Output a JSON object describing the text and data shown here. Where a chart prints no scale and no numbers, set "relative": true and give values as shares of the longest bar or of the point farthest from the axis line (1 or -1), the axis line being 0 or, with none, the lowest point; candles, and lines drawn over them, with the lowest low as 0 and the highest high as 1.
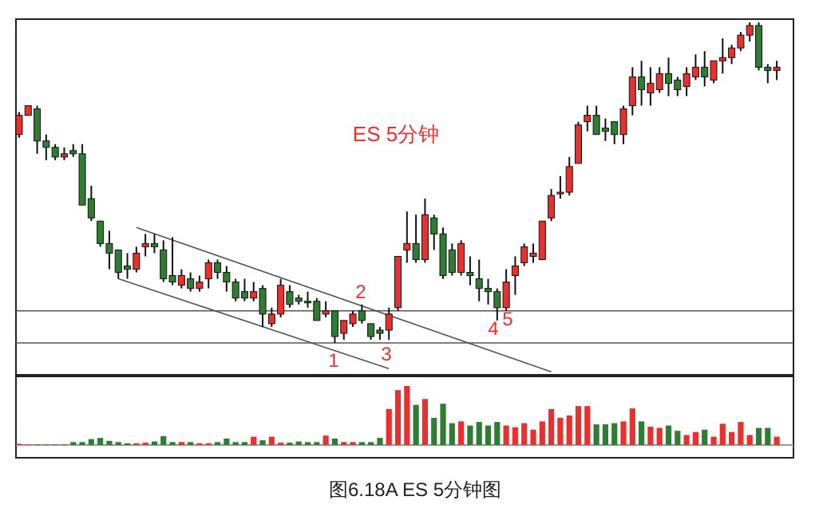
{
  "chart_data": [
    {
      "type": "candlestick",
      "relative": true,
      "categories": [
        null,
        null,
        null,
        null,
        null,
        null,
        null,
        null,
        null,
        null,
        null,
        null,
        null,
        null,
        null,
        null,
        null,
        null,
        null,
        null,
        null,
        null,
        null,
        null,
        null,
        null,
        null,
        null,
        null,
        null,
        null,
        null,
        null,
        null,
        null,
        null,
        null,
        null,
        null,
        null,
        null,
        null,
        null,
        null,
        null,
        null,
        null,
        null,
        null,
        null,
        null,
        null,
        null,
        null,
        null,
        null,
        null,
        null,
        null,
        null,
        null,
        null,
        null,
        null,
        null,
        null,
        null,
        null,
        null,
        null,
        null,
        null,
        null,
        null,
        null,
        null,
        null,
        null,
        null,
        null,
        null,
        null,
        null,
        null,
        null
      ],
      "ohlc": [
        [
          0.65,
          0.72,
          0.64,
          0.71
        ],
        [
          0.71,
          0.74,
          0.71,
          0.74
        ],
        [
          0.73,
          0.74,
          0.59,
          0.63
        ],
        [
          0.63,
          0.65,
          0.57,
          0.61
        ],
        [
          0.61,
          0.62,
          0.57,
          0.58
        ],
        [
          0.58,
          0.61,
          0.57,
          0.59
        ],
        [
          0.6,
          0.62,
          0.58,
          0.59
        ],
        [
          0.59,
          0.62,
          0.43,
          0.43
        ],
        [
          0.45,
          0.49,
          0.38,
          0.39
        ],
        [
          0.38,
          0.38,
          0.3,
          0.31
        ],
        [
          0.31,
          0.35,
          0.23,
          0.28
        ],
        [
          0.29,
          0.29,
          0.2,
          0.22
        ],
        [
          0.24,
          0.28,
          0.2,
          0.23
        ],
        [
          0.23,
          0.3,
          0.22,
          0.28
        ],
        [
          0.3,
          0.34,
          0.27,
          0.31
        ],
        [
          0.31,
          0.34,
          0.28,
          0.3
        ],
        [
          0.29,
          0.32,
          0.19,
          0.2
        ],
        [
          0.21,
          0.33,
          0.18,
          0.19
        ],
        [
          0.18,
          0.23,
          0.17,
          0.21
        ],
        [
          0.2,
          0.22,
          0.16,
          0.17
        ],
        [
          0.17,
          0.21,
          0.16,
          0.19
        ],
        [
          0.2,
          0.26,
          0.17,
          0.25
        ],
        [
          0.25,
          0.26,
          0.2,
          0.22
        ],
        [
          0.22,
          0.24,
          0.16,
          0.19
        ],
        [
          0.19,
          0.2,
          0.13,
          0.14
        ],
        [
          0.16,
          0.2,
          0.13,
          0.14
        ],
        [
          0.14,
          0.19,
          0.13,
          0.16
        ],
        [
          0.17,
          0.18,
          0.05,
          0.09
        ],
        [
          0.06,
          0.11,
          0.05,
          0.09
        ],
        [
          0.09,
          0.2,
          0.08,
          0.18
        ],
        [
          0.16,
          0.18,
          0.11,
          0.12
        ],
        [
          0.14,
          0.15,
          0.12,
          0.13
        ],
        [
          0.13,
          0.16,
          0.11,
          0.13
        ],
        [
          0.13,
          0.14,
          0.07,
          0.07
        ],
        [
          0.09,
          0.13,
          0.08,
          0.1
        ],
        [
          0.1,
          0.1,
          0.0,
          0.02
        ],
        [
          0.03,
          0.07,
          0.01,
          0.07
        ],
        [
          0.06,
          0.1,
          0.05,
          0.09
        ],
        [
          0.1,
          0.12,
          0.06,
          0.07
        ],
        [
          0.06,
          0.06,
          0.01,
          0.02
        ],
        [
          0.04,
          0.05,
          0.01,
          0.03
        ],
        [
          0.04,
          0.11,
          0.01,
          0.09
        ],
        [
          0.11,
          0.27,
          0.1,
          0.27
        ],
        [
          0.29,
          0.41,
          0.25,
          0.31
        ],
        [
          0.31,
          0.4,
          0.25,
          0.26
        ],
        [
          0.26,
          0.45,
          0.25,
          0.4
        ],
        [
          0.39,
          0.4,
          0.29,
          0.34
        ],
        [
          0.34,
          0.36,
          0.2,
          0.21
        ],
        [
          0.29,
          0.31,
          0.21,
          0.22
        ],
        [
          0.22,
          0.32,
          0.21,
          0.31
        ],
        [
          0.22,
          0.27,
          0.18,
          0.21
        ],
        [
          0.2,
          0.26,
          0.13,
          0.17
        ],
        [
          0.17,
          0.2,
          0.12,
          0.16
        ],
        [
          0.16,
          0.17,
          0.07,
          0.11
        ],
        [
          0.11,
          0.23,
          0.1,
          0.19
        ],
        [
          0.21,
          0.27,
          0.15,
          0.24
        ],
        [
          0.25,
          0.31,
          0.24,
          0.3
        ],
        [
          0.27,
          0.31,
          0.25,
          0.28
        ],
        [
          0.26,
          0.38,
          0.26,
          0.38
        ],
        [
          0.39,
          0.48,
          0.38,
          0.46
        ],
        [
          0.47,
          0.52,
          0.45,
          0.47
        ],
        [
          0.47,
          0.58,
          0.46,
          0.55
        ],
        [
          0.56,
          0.69,
          0.56,
          0.68
        ],
        [
          0.69,
          0.74,
          0.66,
          0.71
        ],
        [
          0.71,
          0.74,
          0.65,
          0.65
        ],
        [
          0.67,
          0.7,
          0.63,
          0.66
        ],
        [
          0.69,
          0.69,
          0.62,
          0.65
        ],
        [
          0.65,
          0.74,
          0.62,
          0.73
        ],
        [
          0.74,
          0.86,
          0.71,
          0.83
        ],
        [
          0.83,
          0.88,
          0.74,
          0.79
        ],
        [
          0.78,
          0.86,
          0.74,
          0.81
        ],
        [
          0.79,
          0.86,
          0.78,
          0.84
        ],
        [
          0.84,
          0.89,
          0.77,
          0.81
        ],
        [
          0.82,
          0.83,
          0.77,
          0.79
        ],
        [
          0.8,
          0.86,
          0.77,
          0.84
        ],
        [
          0.83,
          0.9,
          0.82,
          0.86
        ],
        [
          0.86,
          0.91,
          0.8,
          0.83
        ],
        [
          0.82,
          0.88,
          0.81,
          0.88
        ],
        [
          0.88,
          0.95,
          0.84,
          0.89
        ],
        [
          0.89,
          0.93,
          0.87,
          0.92
        ],
        [
          0.92,
          0.97,
          0.91,
          0.96
        ],
        [
          0.96,
          1.0,
          0.94,
          0.99
        ],
        [
          0.99,
          1.0,
          0.85,
          0.86
        ],
        [
          0.86,
          0.87,
          0.81,
          0.85
        ],
        [
          0.85,
          0.88,
          0.82,
          0.86
        ]
      ],
      "colors": [
        "#e8312f",
        "#e8312f",
        "#2e7d32",
        "#2e7d32",
        "#2e7d32",
        "#e8312f",
        "#2e7d32",
        "#2e7d32",
        "#2e7d32",
        "#2e7d32",
        "#2e7d32",
        "#2e7d32",
        "#2e7d32",
        "#e8312f",
        "#e8312f",
        "#2e7d32",
        "#2e7d32",
        "#2e7d32",
        "#e8312f",
        "#2e7d32",
        "#e8312f",
        "#e8312f",
        "#2e7d32",
        "#2e7d32",
        "#2e7d32",
        "#2e7d32",
        "#e8312f",
        "#2e7d32",
        "#e8312f",
        "#e8312f",
        "#2e7d32",
        "#2e7d32",
        "#2e7d32",
        "#2e7d32",
        "#e8312f",
        "#2e7d32",
        "#e8312f",
        "#e8312f",
        "#2e7d32",
        "#2e7d32",
        "#2e7d32",
        "#e8312f",
        "#e8312f",
        "#e8312f",
        "#2e7d32",
        "#e8312f",
        "#2e7d32",
        "#2e7d32",
        "#2e7d32",
        "#e8312f",
        "#2e7d32",
        "#2e7d32",
        "#2e7d32",
        "#2e7d32",
        "#e8312f",
        "#e8312f",
        "#e8312f",
        "#e8312f",
        "#e8312f",
        "#e8312f",
        "#e8312f",
        "#e8312f",
        "#e8312f",
        "#e8312f",
        "#2e7d32",
        "#2e7d32",
        "#2e7d32",
        "#e8312f",
        "#e8312f",
        "#2e7d32",
        "#e8312f",
        "#e8312f",
        "#2e7d32",
        "#2e7d32",
        "#e8312f",
        "#e8312f",
        "#2e7d32",
        "#e8312f",
        "#e8312f",
        "#e8312f",
        "#e8312f",
        "#e8312f",
        "#2e7d32",
        "#2e7d32",
        "#e8312f"
      ],
      "series": [
        {
          "type": "line",
          "color": "#555555",
          "values": [
            null,
            null,
            null,
            null,
            null,
            null,
            null,
            null,
            null,
            null,
            null,
            null,
            null,
            0.36,
            null,
            null,
            null,
            null,
            null,
            null,
            null,
            null,
            null,
            null,
            null,
            null,
            null,
            null,
            null,
            null,
            null,
            null,
            null,
            null,
            null,
            null,
            null,
            null,
            null,
            null,
            null,
            null,
            null,
            null,
            null,
            null,
            null,
            null,
            null,
            null,
            null,
            null,
            null,
            null,
            null,
            null,
            null,
            null,
            null,
            -0.09,
            null,
            null,
            null,
            null,
            null,
            null,
            null,
            null,
            null,
            null,
            null,
            null,
            null,
            null,
            null,
            null,
            null,
            null,
            null,
            null,
            null,
            null,
            null,
            null,
            null
          ]
        },
        {
          "type": "line",
          "color": "#555555",
          "values": [
            null,
            null,
            null,
            null,
            null,
            null,
            null,
            null,
            null,
            null,
            null,
            0.2,
            null,
            null,
            null,
            null,
            null,
            null,
            null,
            null,
            null,
            null,
            null,
            null,
            null,
            null,
            null,
            null,
            null,
            null,
            null,
            null,
            null,
            null,
            null,
            null,
            null,
            null,
            null,
            null,
            null,
            -0.08,
            null,
            null,
            null,
            null,
            null,
            null,
            null,
            null,
            null,
            null,
            null,
            null,
            null,
            null,
            null,
            null,
            null,
            null,
            null,
            null,
            null,
            null,
            null,
            null,
            null,
            null,
            null,
            null,
            null,
            null,
            null,
            null,
            null,
            null,
            null,
            null,
            null,
            null,
            null,
            null,
            null,
            null,
            null
          ]
        }
      ],
      "ref_lines": [
        {
          "axis": "y",
          "value": 0.1,
          "color": "#555555"
        },
        {
          "axis": "y",
          "value": 0.0,
          "color": "#555555"
        }
      ],
      "annotations": [
        "ES 5分钟",
        "1",
        "2",
        "3",
        "4",
        "5"
      ]
    },
    {
      "type": "bar",
      "relative": true,
      "categories": [
        null,
        null,
        null,
        null,
        null,
        null,
        null,
        null,
        null,
        null,
        null,
        null,
        null,
        null,
        null,
        null,
        null,
        null,
        null,
        null,
        null,
        null,
        null,
        null,
        null,
        null,
        null,
        null,
        null,
        null,
        null,
        null,
        null,
        null,
        null,
        null,
        null,
        null,
        null,
        null,
        null,
        null,
        null,
        null,
        null,
        null,
        null,
        null,
        null,
        null,
        null,
        null,
        null,
        null,
        null,
        null,
        null,
        null,
        null,
        null,
        null,
        null,
        null,
        null,
        null,
        null,
        null,
        null,
        null,
        null,
        null,
        null,
        null,
        null,
        null,
        null,
        null,
        null,
        null,
        null,
        null,
        null,
        null,
        null,
        null
      ],
      "values": [
        0.02,
        0.01,
        0.01,
        0.01,
        0.01,
        0.01,
        0.05,
        0.05,
        0.1,
        0.12,
        0.07,
        0.05,
        0.03,
        0.03,
        0.04,
        0.06,
        0.15,
        0.05,
        0.05,
        0.05,
        0.03,
        0.03,
        0.05,
        0.11,
        0.05,
        0.05,
        0.14,
        0.08,
        0.14,
        0.04,
        0.04,
        0.06,
        0.05,
        0.05,
        0.16,
        0.11,
        0.05,
        0.05,
        0.05,
        0.05,
        0.12,
        0.61,
        0.93,
        1.0,
        0.68,
        0.78,
        0.46,
        0.7,
        0.37,
        0.4,
        0.33,
        0.39,
        0.33,
        0.39,
        0.33,
        0.3,
        0.37,
        0.26,
        0.4,
        0.61,
        0.46,
        0.5,
        0.66,
        0.66,
        0.35,
        0.35,
        0.37,
        0.4,
        0.62,
        0.4,
        0.31,
        0.29,
        0.33,
        0.24,
        0.17,
        0.22,
        0.26,
        0.14,
        0.36,
        0.22,
        0.39,
        0.17,
        0.29,
        0.29,
        0.14
      ],
      "colors": [
        "#e8312f",
        "#e8312f",
        "#2e7d32",
        "#2e7d32",
        "#2e7d32",
        "#e8312f",
        "#2e7d32",
        "#2e7d32",
        "#2e7d32",
        "#2e7d32",
        "#2e7d32",
        "#2e7d32",
        "#2e7d32",
        "#e8312f",
        "#e8312f",
        "#2e7d32",
        "#2e7d32",
        "#2e7d32",
        "#e8312f",
        "#2e7d32",
        "#e8312f",
        "#e8312f",
        "#2e7d32",
        "#2e7d32",
        "#2e7d32",
        "#2e7d32",
        "#e8312f",
        "#2e7d32",
        "#e8312f",
        "#e8312f",
        "#2e7d32",
        "#2e7d32",
        "#2e7d32",
        "#2e7d32",
        "#e8312f",
        "#2e7d32",
        "#e8312f",
        "#e8312f",
        "#2e7d32",
        "#2e7d32",
        "#2e7d32",
        "#e8312f",
        "#e8312f",
        "#e8312f",
        "#2e7d32",
        "#e8312f",
        "#2e7d32",
        "#2e7d32",
        "#2e7d32",
        "#e8312f",
        "#2e7d32",
        "#2e7d32",
        "#2e7d32",
        "#2e7d32",
        "#e8312f",
        "#e8312f",
        "#e8312f",
        "#e8312f",
        "#e8312f",
        "#e8312f",
        "#e8312f",
        "#e8312f",
        "#e8312f",
        "#e8312f",
        "#2e7d32",
        "#2e7d32",
        "#2e7d32",
        "#e8312f",
        "#e8312f",
        "#2e7d32",
        "#e8312f",
        "#e8312f",
        "#2e7d32",
        "#2e7d32",
        "#e8312f",
        "#e8312f",
        "#2e7d32",
        "#e8312f",
        "#e8312f",
        "#e8312f",
        "#e8312f",
        "#e8312f",
        "#2e7d32",
        "#2e7d32",
        "#e8312f"
      ],
      "annotations": [
        "图6.18A  ES 5分钟图"
      ]
    }
  ]
}
